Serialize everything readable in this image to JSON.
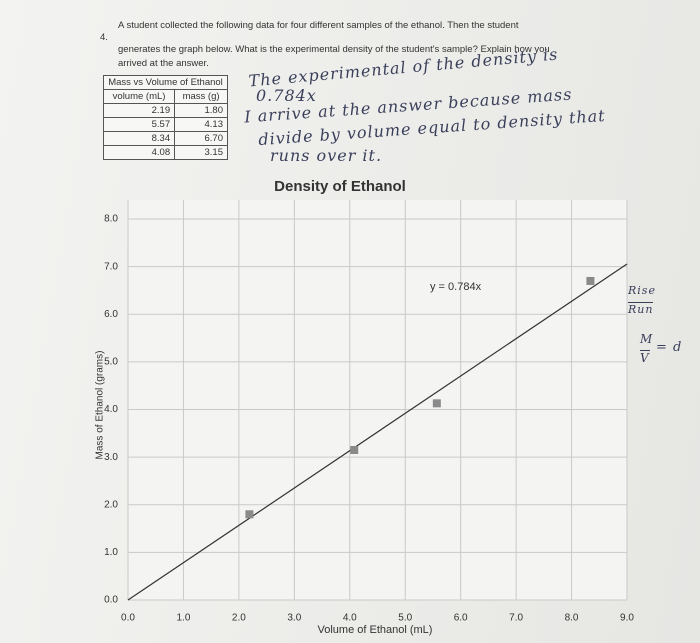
{
  "question": {
    "number": "4.",
    "lines": [
      "A student collected the following data for four different samples of the ethanol. Then the student",
      "generates the graph below. What is the experimental density of the student's sample? Explain how you",
      "arrived at the answer."
    ]
  },
  "table": {
    "title": "Mass vs Volume of Ethanol",
    "columns": [
      "volume (mL)",
      "mass (g)"
    ],
    "rows": [
      [
        "2.19",
        "1.80"
      ],
      [
        "5.57",
        "4.13"
      ],
      [
        "8.34",
        "6.70"
      ],
      [
        "4.08",
        "3.15"
      ]
    ]
  },
  "handwriting": {
    "lines": [
      "The experimental of the density is",
      "0.784x",
      "I arrive at the answer because mass",
      "divide by volume equal to density that",
      "runs over it."
    ]
  },
  "margin_notes": {
    "rise": "Rise",
    "run": "Run",
    "m": "M",
    "v": "V",
    "d": "= d"
  },
  "chart_data": {
    "type": "scatter",
    "title": "Density of Ethanol",
    "x_label": "Volume of Ethanol (mL)",
    "y_label": "Mass of Ethanol (grams)",
    "x": [
      2.19,
      5.57,
      8.34,
      4.08
    ],
    "values": [
      1.8,
      4.13,
      6.7,
      3.15
    ],
    "color": "#8a8a8a",
    "trendline": {
      "slope": 0.784,
      "label": "y = 0.784x",
      "color": "#333333"
    },
    "xlim": [
      0,
      9
    ],
    "ylim": [
      0,
      8.4
    ],
    "xticks": [
      {
        "value": 0,
        "label": "0.0"
      },
      {
        "value": 1,
        "label": "1.0"
      },
      {
        "value": 2,
        "label": "2.0"
      },
      {
        "value": 3,
        "label": "3.0"
      },
      {
        "value": 4,
        "label": "4.0"
      },
      {
        "value": 5,
        "label": "5.0"
      },
      {
        "value": 6,
        "label": "6.0"
      },
      {
        "value": 7,
        "label": "7.0"
      },
      {
        "value": 8,
        "label": "8.0"
      },
      {
        "value": 9,
        "label": "9.0"
      }
    ],
    "yticks": [
      {
        "value": 0,
        "label": "0.0"
      },
      {
        "value": 1,
        "label": "1.0"
      },
      {
        "value": 2,
        "label": "2.0"
      },
      {
        "value": 3,
        "label": "3.0"
      },
      {
        "value": 4,
        "label": "4.0"
      },
      {
        "value": 5,
        "label": "5.0"
      },
      {
        "value": 6,
        "label": "6.0"
      },
      {
        "value": 7,
        "label": "7.0"
      },
      {
        "value": 8,
        "label": "8.0"
      }
    ],
    "grid": true
  }
}
